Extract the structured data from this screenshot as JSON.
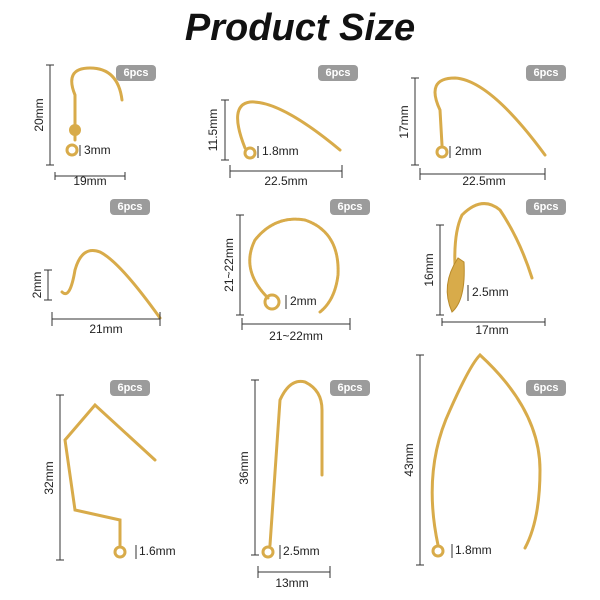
{
  "title": "Product Size",
  "items": [
    {
      "quantity": "6pcs",
      "height": "20mm",
      "width": "19mm",
      "loop": "3mm"
    },
    {
      "quantity": "6pcs",
      "height": "11.5mm",
      "width": "22.5mm",
      "loop": "1.8mm"
    },
    {
      "quantity": "6pcs",
      "height": "17mm",
      "width": "22.5mm",
      "loop": "2mm"
    },
    {
      "quantity": "6pcs",
      "height": "2mm",
      "width": "21mm"
    },
    {
      "quantity": "6pcs",
      "height": "21~22mm",
      "width": "21~22mm",
      "loop": "2mm"
    },
    {
      "quantity": "6pcs",
      "height": "16mm",
      "width": "17mm",
      "loop": "2.5mm"
    },
    {
      "quantity": "6pcs",
      "height": "32mm",
      "loop": "1.6mm"
    },
    {
      "quantity": "6pcs",
      "height": "36mm",
      "width": "13mm",
      "loop": "2.5mm"
    },
    {
      "quantity": "6pcs",
      "height": "43mm",
      "loop": "1.8mm"
    }
  ]
}
